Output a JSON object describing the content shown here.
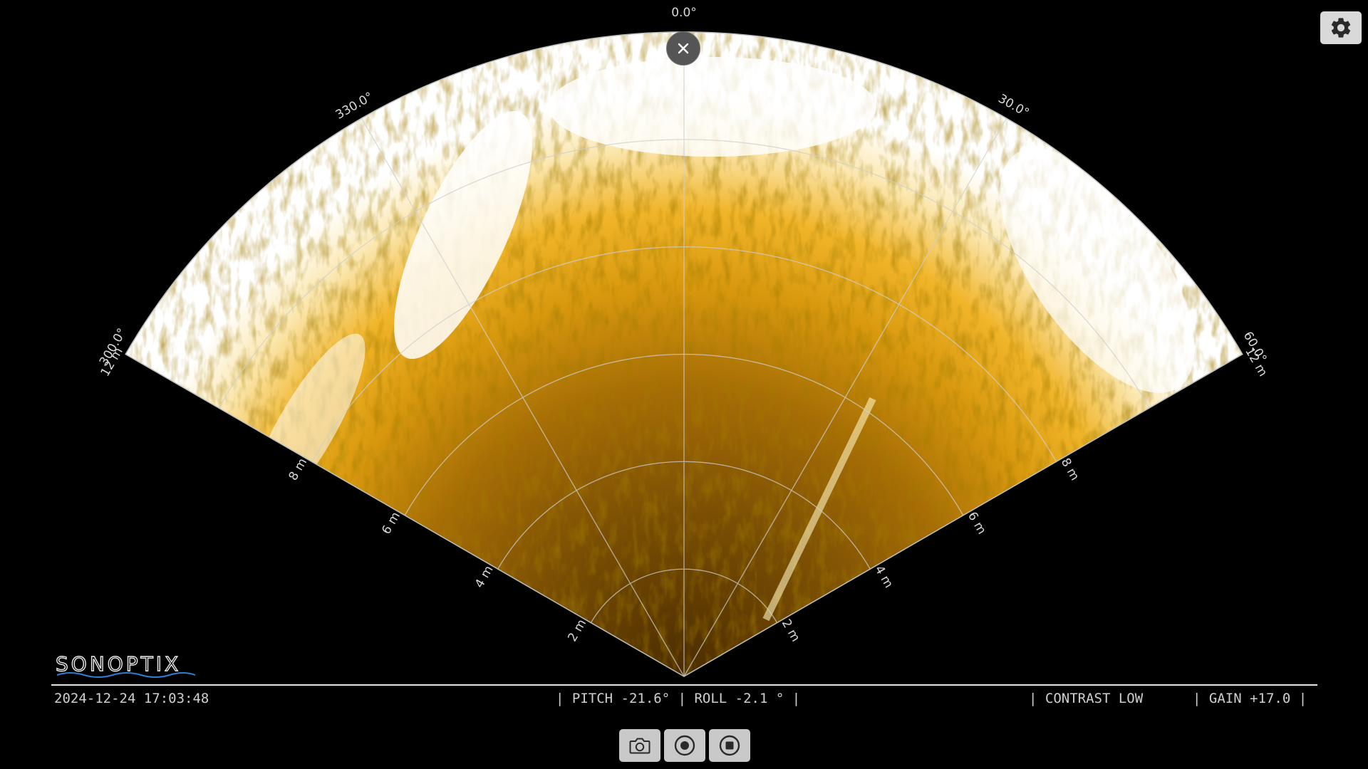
{
  "sonar": {
    "angle_labels": {
      "a0": "0.0°",
      "a330": "330.0°",
      "a30": "30.0°",
      "a300": "300.0°",
      "a60": "60.0°"
    },
    "range_labels": {
      "r2": "2 m",
      "r4": "4 m",
      "r6": "6 m",
      "r8": "8 m",
      "r12": "12 m"
    },
    "colors": {
      "echo_dark": "#3d2400",
      "echo_mid": "#b87a08",
      "echo_bright": "#f0b020",
      "echo_saturated": "#ffffff",
      "grid": "#d0d0d0"
    }
  },
  "logo": {
    "text": "SONOPTIX"
  },
  "status": {
    "timestamp": "2024-12-24 17:03:48",
    "pitch": "| PITCH -21.6° | ROLL -2.1 ° |",
    "contrast": "| CONTRAST LOW",
    "gain": "| GAIN +17.0 |"
  },
  "icons": {
    "settings": "gear-icon",
    "close": "close-icon",
    "camera": "camera-icon",
    "record": "record-icon",
    "stop": "stop-icon"
  }
}
